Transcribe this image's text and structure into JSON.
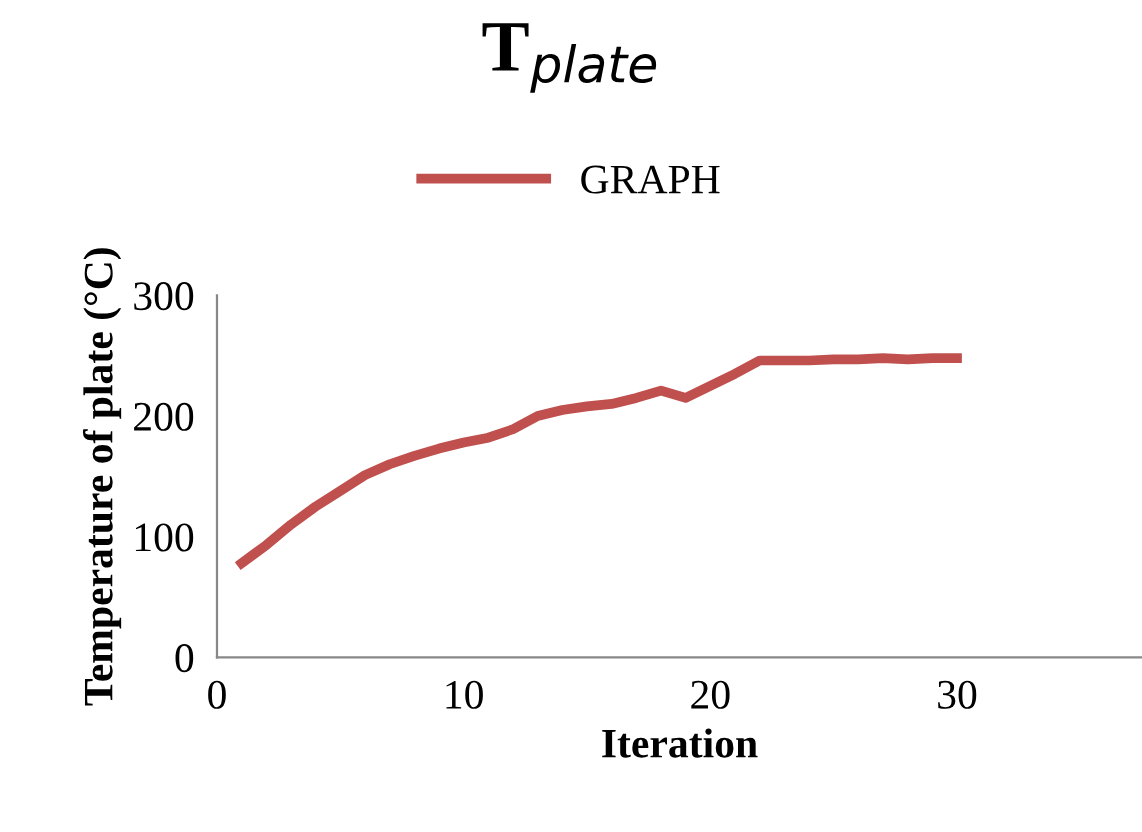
{
  "chart_data": {
    "type": "line",
    "title": "T$_{plate}$",
    "xlabel": "Iteration",
    "ylabel": "Temperature of plate (°C)",
    "x": [
      1,
      2,
      3,
      4,
      5,
      6,
      7,
      8,
      9,
      10,
      11,
      12,
      13,
      14,
      15,
      16,
      17,
      18,
      19,
      20,
      21,
      22,
      23,
      24,
      25,
      26,
      27,
      28,
      29,
      30
    ],
    "series": [
      {
        "name": "GRAPH",
        "color": "#c0504d",
        "values": [
          78,
          93,
          110,
          125,
          138,
          151,
          160,
          167,
          173,
          178,
          182,
          189,
          200,
          205,
          208,
          210,
          215,
          221,
          215,
          225,
          235,
          246,
          246,
          246,
          247,
          247,
          248,
          247,
          248,
          248
        ]
      }
    ],
    "xlim": [
      0,
      37.5
    ],
    "xticks": [
      0,
      10,
      20,
      30
    ],
    "ylim": [
      0,
      300
    ],
    "yticks": [
      0,
      100,
      200,
      300
    ],
    "grid": false,
    "legend": "top",
    "marker": "none",
    "line_style": "solid"
  }
}
